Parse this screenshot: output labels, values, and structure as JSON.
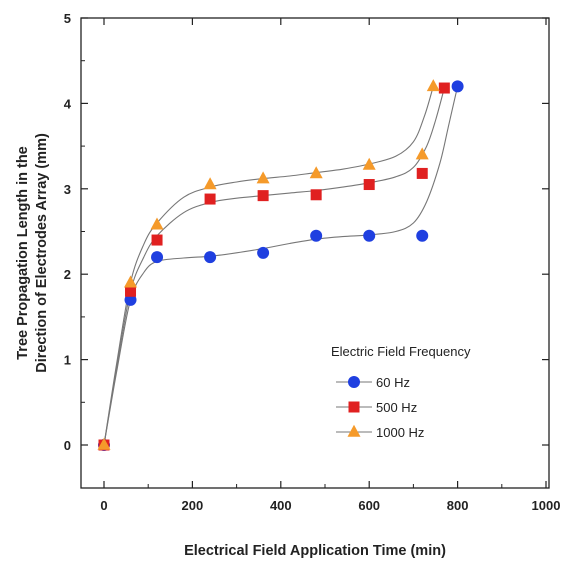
{
  "chart_data": {
    "type": "scatter",
    "title": "",
    "xlabel": "Electrical Field Application Time (min)",
    "ylabel_lines": [
      "Tree Propagation Length in the",
      "Direction of Electrodes Array (mm)"
    ],
    "xlim": [
      -50,
      1000
    ],
    "ylim": [
      -0.5,
      5
    ],
    "xticks": [
      0,
      200,
      400,
      600,
      800,
      1000
    ],
    "yticks": [
      0,
      1,
      2,
      3,
      4,
      5
    ],
    "grid": false,
    "legend_title": "Electric Field Frequency",
    "legend_position": "center-right",
    "series": [
      {
        "name": "60 Hz",
        "marker": "circle",
        "color": "#1f3fe0",
        "x": [
          0,
          60,
          120,
          240,
          360,
          480,
          600,
          720,
          800
        ],
        "y": [
          0,
          1.7,
          2.2,
          2.2,
          2.25,
          2.45,
          2.45,
          2.45,
          4.2
        ]
      },
      {
        "name": "500 Hz",
        "marker": "square",
        "color": "#e02020",
        "x": [
          0,
          60,
          120,
          240,
          360,
          480,
          600,
          720,
          770
        ],
        "y": [
          0,
          1.8,
          2.4,
          2.88,
          2.92,
          2.93,
          3.05,
          3.18,
          4.18
        ]
      },
      {
        "name": "1000 Hz",
        "marker": "triangle",
        "color": "#f59a2a",
        "x": [
          0,
          60,
          120,
          240,
          360,
          480,
          600,
          720,
          745
        ],
        "y": [
          0,
          1.9,
          2.58,
          3.05,
          3.12,
          3.18,
          3.28,
          3.4,
          4.2
        ]
      }
    ],
    "fit_curves": [
      {
        "for": "60 Hz",
        "x": [
          0,
          30,
          60,
          90,
          120,
          180,
          240,
          300,
          360,
          420,
          480,
          540,
          600,
          660,
          700,
          730,
          760,
          780,
          800
        ],
        "y": [
          0,
          0.9,
          1.7,
          2.02,
          2.15,
          2.19,
          2.21,
          2.25,
          2.3,
          2.36,
          2.41,
          2.44,
          2.46,
          2.5,
          2.6,
          2.85,
          3.3,
          3.75,
          4.2
        ]
      },
      {
        "for": "500 Hz",
        "x": [
          0,
          30,
          60,
          90,
          120,
          180,
          240,
          300,
          360,
          420,
          480,
          540,
          600,
          660,
          700,
          730,
          750,
          770
        ],
        "y": [
          0,
          0.95,
          1.8,
          2.2,
          2.45,
          2.72,
          2.84,
          2.89,
          2.92,
          2.95,
          2.98,
          3.02,
          3.07,
          3.14,
          3.25,
          3.5,
          3.8,
          4.18
        ]
      },
      {
        "for": "1000 Hz",
        "x": [
          0,
          30,
          60,
          90,
          120,
          180,
          240,
          300,
          360,
          420,
          480,
          540,
          600,
          660,
          700,
          725,
          745
        ],
        "y": [
          0,
          1.0,
          1.9,
          2.35,
          2.6,
          2.9,
          3.02,
          3.08,
          3.12,
          3.15,
          3.19,
          3.23,
          3.29,
          3.38,
          3.55,
          3.85,
          4.2
        ]
      }
    ]
  }
}
